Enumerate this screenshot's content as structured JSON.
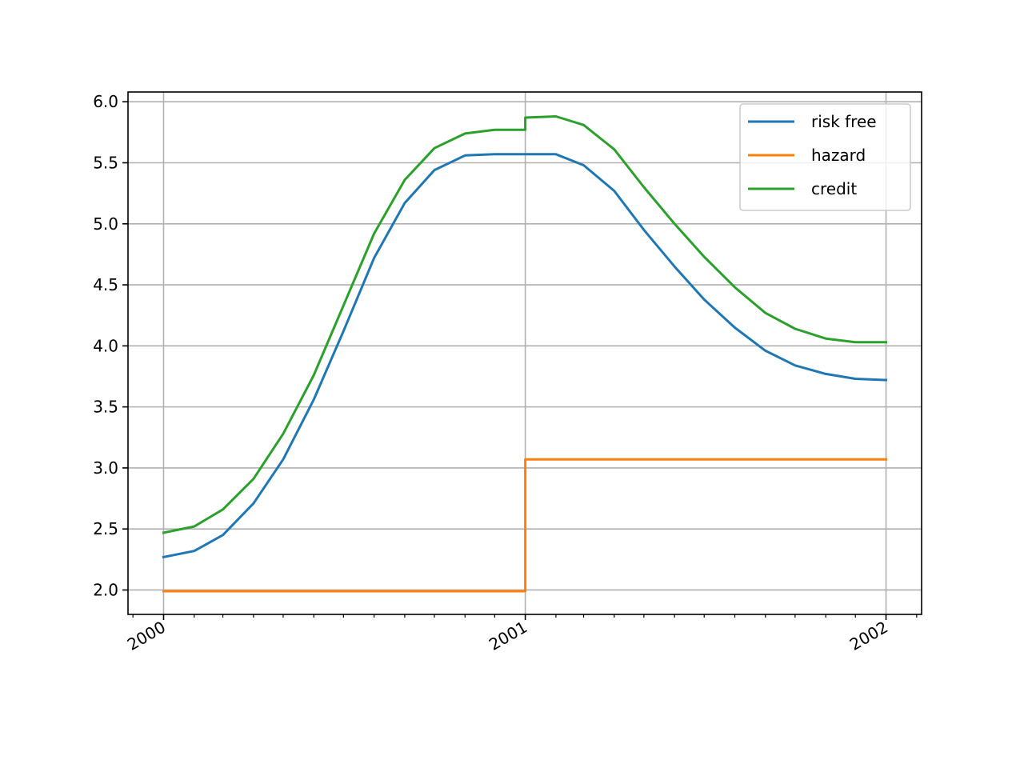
{
  "chart_data": {
    "type": "line",
    "title": "",
    "xlabel": "",
    "ylabel": "",
    "x": [
      "2000-01-01",
      "2000-02-01",
      "2000-03-01",
      "2000-04-01",
      "2000-05-01",
      "2000-06-01",
      "2000-07-01",
      "2000-08-01",
      "2000-09-01",
      "2000-10-01",
      "2000-11-01",
      "2000-12-01",
      "2001-01-01",
      "2001-02-01",
      "2001-03-01",
      "2001-04-01",
      "2001-05-01",
      "2001-06-01",
      "2001-07-01",
      "2001-08-01",
      "2001-09-01",
      "2001-10-01",
      "2001-11-01",
      "2001-12-01",
      "2002-01-01"
    ],
    "xlim": [
      "1999-11-26",
      "2002-02-06"
    ],
    "ylim": [
      1.8,
      6.08
    ],
    "xticks": [
      "2000",
      "2001",
      "2002"
    ],
    "xtick_dates": [
      "2000-01-01",
      "2001-01-01",
      "2002-01-01"
    ],
    "yticks": [
      2.0,
      2.5,
      3.0,
      3.5,
      4.0,
      4.5,
      5.0,
      5.5,
      6.0
    ],
    "ytick_labels": [
      "2.0",
      "2.5",
      "3.0",
      "3.5",
      "4.0",
      "4.5",
      "5.0",
      "5.5",
      "6.0"
    ],
    "grid": true,
    "legend_position": "top-right",
    "series": [
      {
        "name": "risk free",
        "color": "#1f77b4",
        "values": [
          2.27,
          2.32,
          2.45,
          2.71,
          3.07,
          3.56,
          4.12,
          4.72,
          5.17,
          5.44,
          5.56,
          5.57,
          5.57,
          5.57,
          5.48,
          5.27,
          4.95,
          4.65,
          4.38,
          4.15,
          3.96,
          3.84,
          3.77,
          3.73,
          3.72
        ]
      },
      {
        "name": "hazard",
        "color": "#ff7f0e",
        "step": true,
        "values": [
          1.99,
          1.99,
          1.99,
          1.99,
          1.99,
          1.99,
          1.99,
          1.99,
          1.99,
          1.99,
          1.99,
          1.99,
          3.07,
          3.07,
          3.07,
          3.07,
          3.07,
          3.07,
          3.07,
          3.07,
          3.07,
          3.07,
          3.07,
          3.07,
          3.07
        ]
      },
      {
        "name": "credit",
        "color": "#2ca02c",
        "jump_at": "2001-01-01",
        "value_before_jump": 5.77,
        "values": [
          2.47,
          2.52,
          2.66,
          2.91,
          3.28,
          3.76,
          4.33,
          4.92,
          5.36,
          5.62,
          5.74,
          5.77,
          5.87,
          5.88,
          5.81,
          5.61,
          5.3,
          5.0,
          4.73,
          4.48,
          4.27,
          4.14,
          4.06,
          4.03,
          4.03
        ]
      }
    ]
  }
}
